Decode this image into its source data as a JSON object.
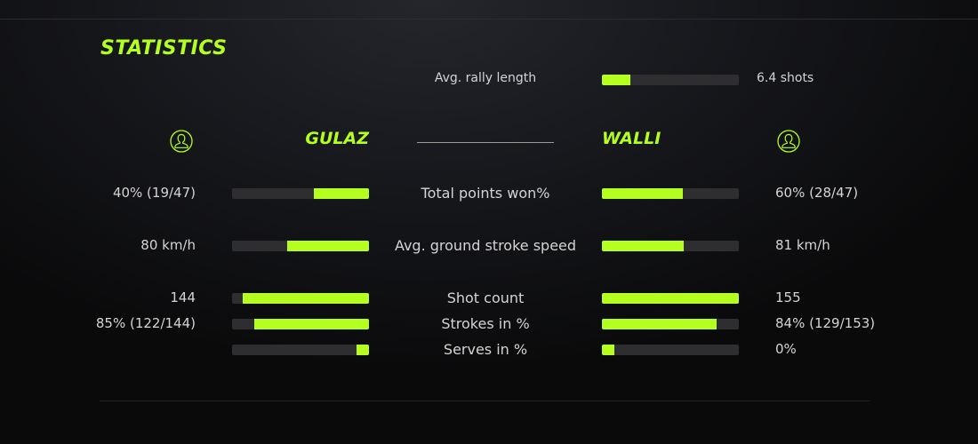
{
  "title": "STATISTICS",
  "accent": "#b4ff1f",
  "rally": {
    "label": "Avg. rally length",
    "value": "6.4 shots",
    "fill": 21
  },
  "players": {
    "left": {
      "name": "GULAZ",
      "icon": "user-circle-icon"
    },
    "right": {
      "name": "WALLI",
      "icon": "user-circle-icon"
    }
  },
  "stats": [
    {
      "label": "Total points won%",
      "left": "40% (19/47)",
      "right": "60% (28/47)",
      "left_fill": 40,
      "right_fill": 59
    },
    {
      "label": "Avg. ground stroke speed",
      "left": "80 km/h",
      "right": "81 km/h",
      "left_fill": 60,
      "right_fill": 60
    },
    {
      "label": "Shot count",
      "left": "144",
      "right": "155",
      "left_fill": 92,
      "right_fill": 100
    },
    {
      "label": "Strokes in %",
      "left": "85% (122/144)",
      "right": "84% (129/153)",
      "left_fill": 84,
      "right_fill": 84
    },
    {
      "label": "Serves in %",
      "left": "",
      "right": "0%",
      "left_fill": 9,
      "right_fill": 9
    }
  ]
}
